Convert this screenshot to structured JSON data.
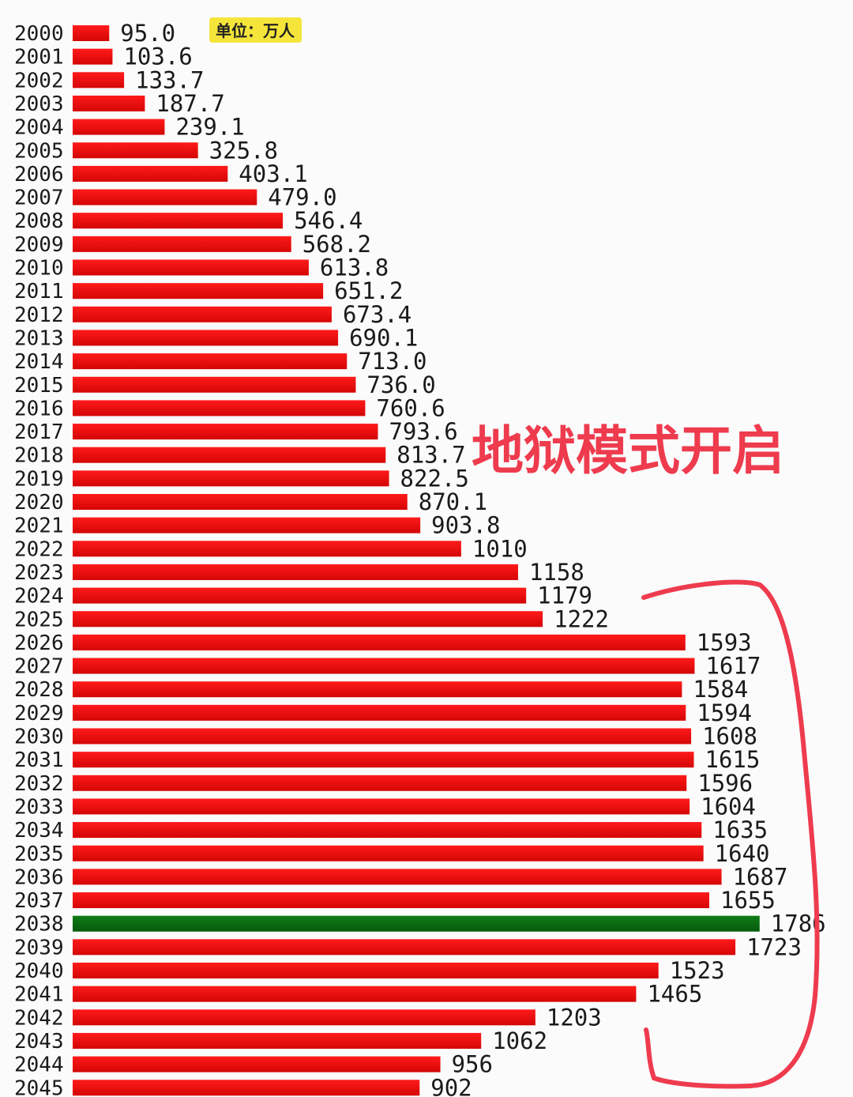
{
  "chart_data": {
    "type": "bar",
    "orientation": "horizontal",
    "unit_label": "单位：万人",
    "annotation": "地狱模式开启",
    "categories": [
      "2000",
      "2001",
      "2002",
      "2003",
      "2004",
      "2005",
      "2006",
      "2007",
      "2008",
      "2009",
      "2010",
      "2011",
      "2012",
      "2013",
      "2014",
      "2015",
      "2016",
      "2017",
      "2018",
      "2019",
      "2020",
      "2021",
      "2022",
      "2023",
      "2024",
      "2025",
      "2026",
      "2027",
      "2028",
      "2029",
      "2030",
      "2031",
      "2032",
      "2033",
      "2034",
      "2035",
      "2036",
      "2037",
      "2038",
      "2039",
      "2040",
      "2041",
      "2042",
      "2043",
      "2044",
      "2045"
    ],
    "value_labels": [
      "95.0",
      "103.6",
      "133.7",
      "187.7",
      "239.1",
      "325.8",
      "403.1",
      "479.0",
      "546.4",
      "568.2",
      "613.8",
      "651.2",
      "673.4",
      "690.1",
      "713.0",
      "736.0",
      "760.6",
      "793.6",
      "813.7",
      "822.5",
      "870.1",
      "903.8",
      "1010",
      "1158",
      "1179",
      "1222",
      "1593",
      "1617",
      "1584",
      "1594",
      "1608",
      "1615",
      "1596",
      "1604",
      "1635",
      "1640",
      "1687",
      "1655",
      "1786",
      "1723",
      "1523",
      "1465",
      "1203",
      "1062",
      "956",
      "902"
    ],
    "values": [
      95.0,
      103.6,
      133.7,
      187.7,
      239.1,
      325.8,
      403.1,
      479.0,
      546.4,
      568.2,
      613.8,
      651.2,
      673.4,
      690.1,
      713.0,
      736.0,
      760.6,
      793.6,
      813.7,
      822.5,
      870.1,
      903.8,
      1010,
      1158,
      1179,
      1222,
      1593,
      1617,
      1584,
      1594,
      1608,
      1615,
      1596,
      1604,
      1635,
      1640,
      1687,
      1655,
      1786,
      1723,
      1523,
      1465,
      1203,
      1062,
      956,
      902
    ],
    "highlight_index": 38,
    "colors": {
      "bar": "#f20c0c",
      "bar_dark": "#b50a0a",
      "highlight": "#0b6b12",
      "annotation": "#ee3b4e",
      "unit_badge": "#f5e53a"
    }
  }
}
